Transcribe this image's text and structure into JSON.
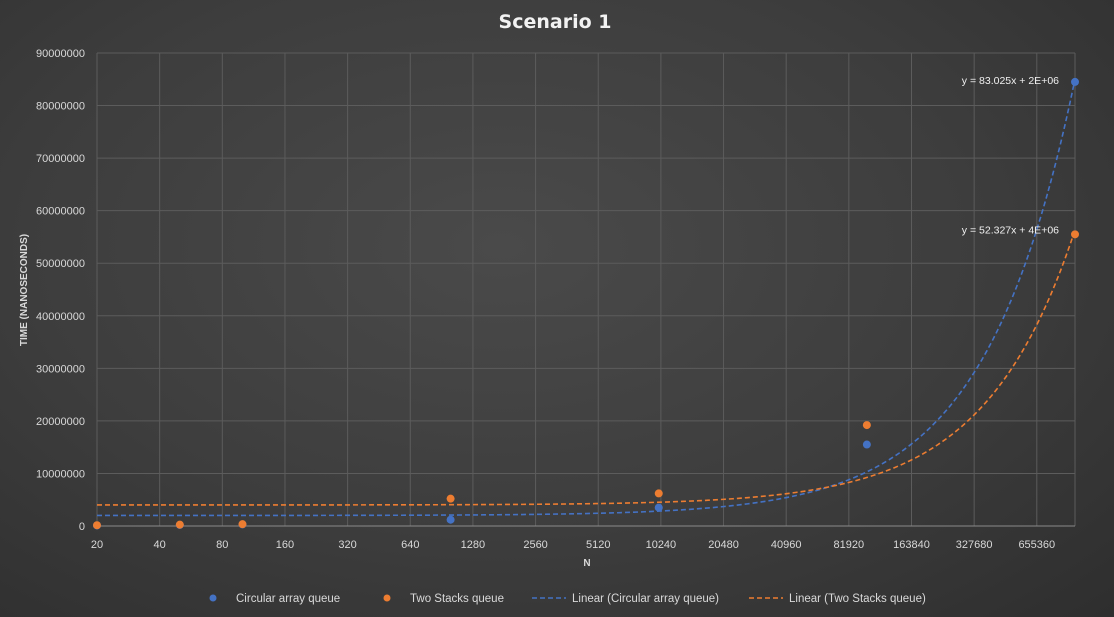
{
  "chart_data": {
    "type": "scatter",
    "title": "Scenario 1",
    "xlabel": "N",
    "ylabel": "TIME (NANOSECONDS)",
    "x_scale": "log2",
    "x_ticks": [
      "20",
      "40",
      "80",
      "160",
      "320",
      "640",
      "1280",
      "2560",
      "5120",
      "10240",
      "20480",
      "40960",
      "81920",
      "163840",
      "327680",
      "655360"
    ],
    "y_ticks": [
      "0",
      "10000000",
      "20000000",
      "30000000",
      "40000000",
      "50000000",
      "60000000",
      "70000000",
      "80000000",
      "90000000"
    ],
    "ylim": [
      0,
      90000000
    ],
    "grid": true,
    "legend_position": "bottom",
    "colors": {
      "circular": "#4472c4",
      "twostacks": "#ed7d31"
    },
    "series": [
      {
        "name": "Circular array queue",
        "marker": "circle",
        "x": [
          20,
          50,
          100,
          1000,
          10000,
          100000,
          1000000
        ],
        "y": [
          100000,
          200000,
          300000,
          1200000,
          3500000,
          15500000,
          84500000
        ]
      },
      {
        "name": "Two Stacks queue",
        "marker": "circle",
        "x": [
          20,
          50,
          100,
          1000,
          10000,
          100000,
          1000000
        ],
        "y": [
          150000,
          250000,
          350000,
          5200000,
          6200000,
          19200000,
          55500000
        ]
      },
      {
        "name": "Linear (Circular array queue)",
        "line": "dashed",
        "trendline": {
          "slope": 83.025,
          "intercept": 2000000,
          "equation": "y = 83.025x + 2E+06"
        }
      },
      {
        "name": "Linear (Two Stacks queue)",
        "line": "dashed",
        "trendline": {
          "slope": 52.327,
          "intercept": 4000000,
          "equation": "y = 52.327x + 4E+06"
        }
      }
    ]
  }
}
